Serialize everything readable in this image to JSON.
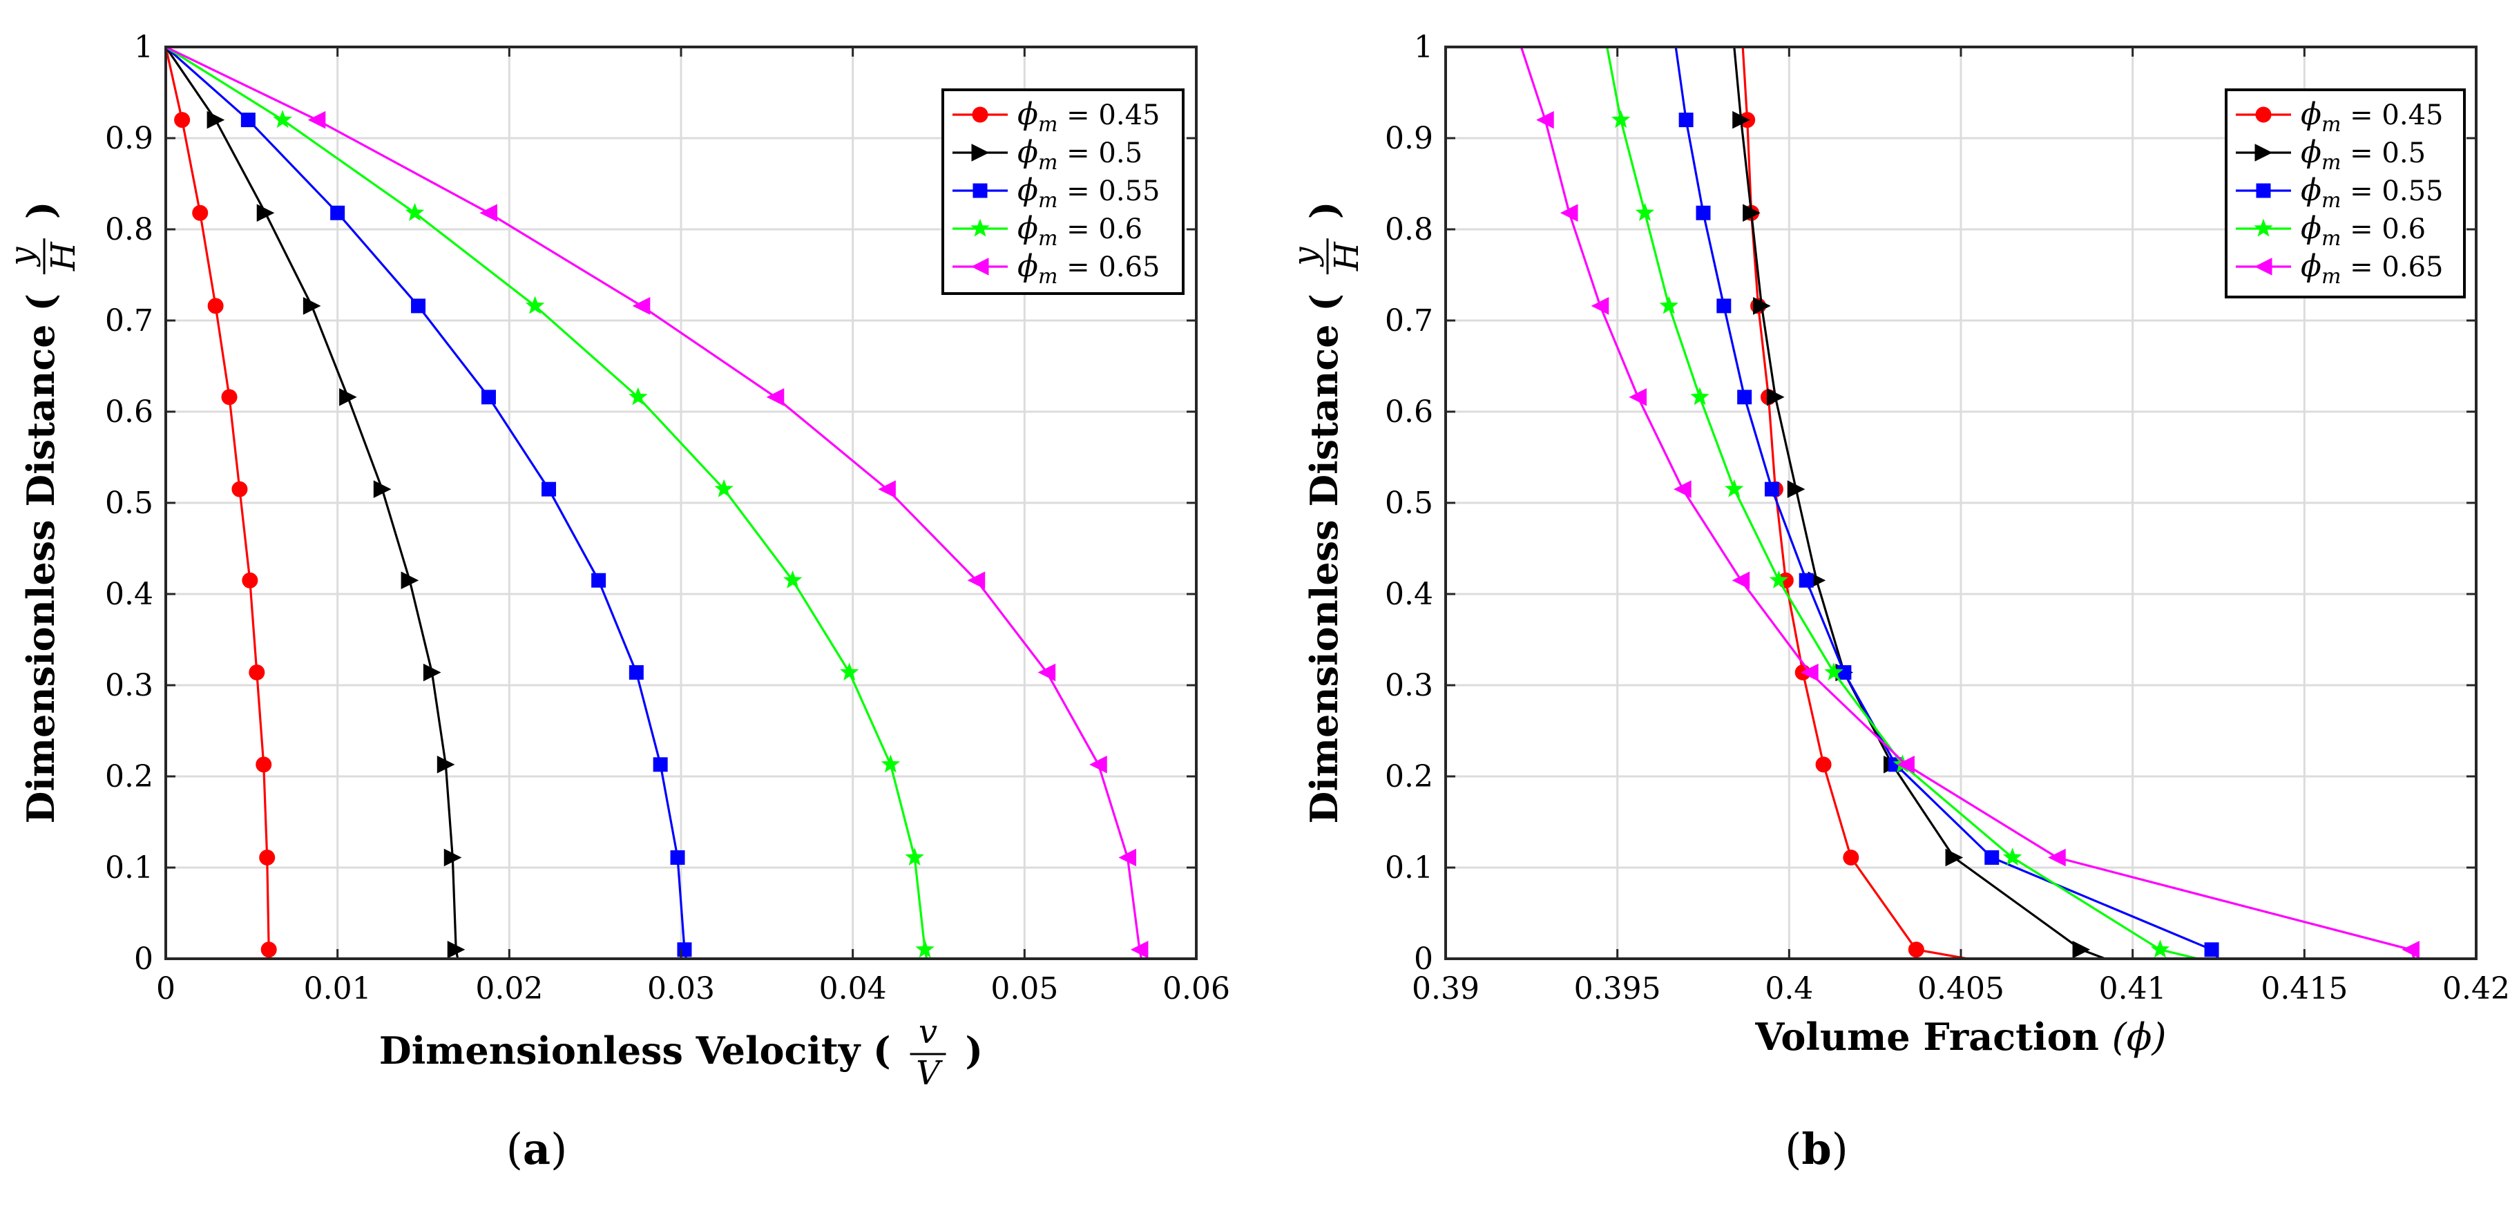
{
  "chart_data": [
    {
      "type": "line",
      "panel_label": {
        "open": "(",
        "letter": "a",
        "close": ")"
      },
      "xlabel": "Dimensionless Velocity",
      "xlabel_frac": {
        "num": "v",
        "den": "V"
      },
      "ylabel": "Dimensionless Distance",
      "ylabel_frac": {
        "num": "y",
        "den": "H"
      },
      "xlim": [
        0,
        0.06
      ],
      "ylim": [
        0,
        1
      ],
      "xticks": [
        0,
        0.01,
        0.02,
        0.03,
        0.04,
        0.05,
        0.06
      ],
      "xtick_labels": [
        "0",
        "0.01",
        "0.02",
        "0.03",
        "0.04",
        "0.05",
        "0.06"
      ],
      "yticks": [
        0,
        0.1,
        0.2,
        0.3,
        0.4,
        0.5,
        0.6,
        0.7,
        0.8,
        0.9,
        1
      ],
      "ytick_labels": [
        "0",
        "0.1",
        "0.2",
        "0.3",
        "0.4",
        "0.5",
        "0.6",
        "0.7",
        "0.8",
        "0.9",
        "1"
      ],
      "grid": true,
      "legend_position": "top-right",
      "series": [
        {
          "name": "0.45",
          "color": "#ff0000",
          "marker": "circle",
          "x": [
            0,
            0.00095,
            0.002,
            0.0029,
            0.0037,
            0.0043,
            0.0049,
            0.0053,
            0.0057,
            0.0059,
            0.006,
            0.0061
          ],
          "y": [
            1,
            0.92,
            0.818,
            0.716,
            0.616,
            0.515,
            0.415,
            0.314,
            0.213,
            0.111,
            0.01,
            0
          ]
        },
        {
          "name": "0.5",
          "color": "#000000",
          "marker": "triangle-right",
          "x": [
            0,
            0.0029,
            0.0058,
            0.0085,
            0.0106,
            0.0126,
            0.0142,
            0.0155,
            0.0163,
            0.0167,
            0.0169,
            0.017
          ],
          "y": [
            1,
            0.92,
            0.818,
            0.716,
            0.616,
            0.515,
            0.415,
            0.314,
            0.213,
            0.111,
            0.01,
            0
          ]
        },
        {
          "name": "0.55",
          "color": "#0000ff",
          "marker": "square",
          "x": [
            0,
            0.0048,
            0.01,
            0.0147,
            0.0188,
            0.0223,
            0.0252,
            0.0274,
            0.0288,
            0.0298,
            0.0302,
            0.0303
          ],
          "y": [
            1,
            0.92,
            0.818,
            0.716,
            0.616,
            0.515,
            0.415,
            0.314,
            0.213,
            0.111,
            0.01,
            0
          ]
        },
        {
          "name": "0.6",
          "color": "#00ff00",
          "marker": "star",
          "x": [
            0,
            0.0068,
            0.0145,
            0.0215,
            0.0275,
            0.0325,
            0.0365,
            0.0398,
            0.0422,
            0.0436,
            0.0442,
            0.0443
          ],
          "y": [
            1,
            0.92,
            0.818,
            0.716,
            0.616,
            0.515,
            0.415,
            0.314,
            0.213,
            0.111,
            0.01,
            0
          ]
        },
        {
          "name": "0.65",
          "color": "#ff00ff",
          "marker": "triangle-left",
          "x": [
            0,
            0.0088,
            0.0188,
            0.0277,
            0.0355,
            0.042,
            0.0472,
            0.0513,
            0.0543,
            0.056,
            0.0567,
            0.0568
          ],
          "y": [
            1,
            0.92,
            0.818,
            0.716,
            0.616,
            0.515,
            0.415,
            0.314,
            0.213,
            0.111,
            0.01,
            0
          ]
        }
      ]
    },
    {
      "type": "line",
      "panel_label": {
        "open": "(",
        "letter": "b",
        "close": ")"
      },
      "xlabel": "Volume Fraction",
      "xlabel_symbol": "(ϕ)",
      "ylabel": "Dimensionless Distance",
      "ylabel_frac": {
        "num": "y",
        "den": "H"
      },
      "xlim": [
        0.39,
        0.42
      ],
      "ylim": [
        0,
        1
      ],
      "xticks": [
        0.39,
        0.395,
        0.4,
        0.405,
        0.41,
        0.415,
        0.42
      ],
      "xtick_labels": [
        "0.39",
        "0.395",
        "0.4",
        "0.405",
        "0.41",
        "0.415",
        "0.42"
      ],
      "yticks": [
        0,
        0.1,
        0.2,
        0.3,
        0.4,
        0.5,
        0.6,
        0.7,
        0.8,
        0.9,
        1
      ],
      "ytick_labels": [
        "0",
        "0.1",
        "0.2",
        "0.3",
        "0.4",
        "0.5",
        "0.6",
        "0.7",
        "0.8",
        "0.9",
        "1"
      ],
      "grid": true,
      "legend_position": "top-right",
      "series": [
        {
          "name": "0.45",
          "color": "#ff0000",
          "marker": "circle",
          "x": [
            0.39865,
            0.39878,
            0.3989,
            0.3991,
            0.3994,
            0.3996,
            0.3999,
            0.4004,
            0.401,
            0.4018,
            0.4037,
            0.4052
          ],
          "y": [
            1,
            0.92,
            0.818,
            0.716,
            0.616,
            0.515,
            0.415,
            0.314,
            0.213,
            0.111,
            0.01,
            0
          ]
        },
        {
          "name": "0.5",
          "color": "#000000",
          "marker": "triangle-right",
          "x": [
            0.3984,
            0.3986,
            0.3989,
            0.3992,
            0.3996,
            0.4002,
            0.4008,
            0.4016,
            0.403,
            0.4048,
            0.4085,
            0.4092
          ],
          "y": [
            1,
            0.92,
            0.818,
            0.716,
            0.616,
            0.515,
            0.415,
            0.314,
            0.213,
            0.111,
            0.01,
            0
          ]
        },
        {
          "name": "0.55",
          "color": "#0000ff",
          "marker": "square",
          "x": [
            0.3967,
            0.397,
            0.3975,
            0.3981,
            0.3987,
            0.3995,
            0.4005,
            0.4016,
            0.4031,
            0.4059,
            0.4123,
            0.4125
          ],
          "y": [
            1,
            0.92,
            0.818,
            0.716,
            0.616,
            0.515,
            0.415,
            0.314,
            0.213,
            0.111,
            0.01,
            0
          ]
        },
        {
          "name": "0.6",
          "color": "#00ff00",
          "marker": "star",
          "x": [
            0.3947,
            0.3951,
            0.3958,
            0.3965,
            0.3974,
            0.3984,
            0.3997,
            0.4013,
            0.4033,
            0.4065,
            0.4108,
            0.4119
          ],
          "y": [
            1,
            0.92,
            0.818,
            0.716,
            0.616,
            0.515,
            0.415,
            0.314,
            0.213,
            0.111,
            0.01,
            0
          ]
        },
        {
          "name": "0.65",
          "color": "#ff00ff",
          "marker": "triangle-left",
          "x": [
            0.3922,
            0.3929,
            0.3936,
            0.3945,
            0.3956,
            0.3969,
            0.3986,
            0.4006,
            0.4034,
            0.4078,
            0.4181,
            0.4182
          ],
          "y": [
            1,
            0.92,
            0.818,
            0.716,
            0.616,
            0.515,
            0.415,
            0.314,
            0.213,
            0.111,
            0.01,
            0
          ]
        }
      ]
    }
  ],
  "legend": {
    "symbol": "ϕ",
    "subscript": "m",
    "equals": "="
  }
}
